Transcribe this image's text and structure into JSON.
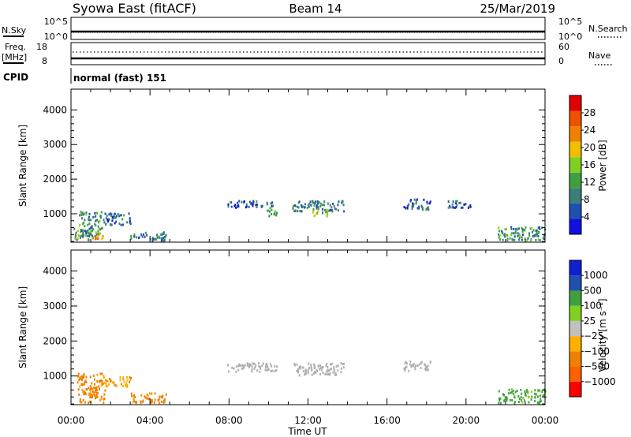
{
  "header": {
    "station": "Syowa East (fitACF)",
    "beam": "Beam 14",
    "date": "25/Mar/2019"
  },
  "top_panels": {
    "nsky_label": "N.Sky",
    "nsky_ticks": [
      "10^5",
      "10^0"
    ],
    "nsearch_label": "N.Search",
    "nsearch_ticks": [
      "10^5",
      "10^0"
    ],
    "freq_label": "Freq.",
    "freq_unit": "[MHz]",
    "freq_ticks": [
      "18",
      "8"
    ],
    "nave_label": "Nave",
    "nave_ticks": [
      "60",
      "0"
    ],
    "cpid_label": "CPID",
    "cpid_value": "normal (fast) 151"
  },
  "colors": {
    "power_scale": [
      "#1010e0",
      "#2050b0",
      "#3a7f78",
      "#40a040",
      "#80d020",
      "#f0c000",
      "#f08000",
      "#f05000",
      "#e00000"
    ],
    "velocity_scale": [
      "#ff0000",
      "#ff6000",
      "#f08000",
      "#ffb000",
      "#c0c0c0",
      "#80d020",
      "#40a040",
      "#2050b0",
      "#1020d0"
    ],
    "ground_scatter": "#b0b0b0"
  },
  "chart_data": [
    {
      "type": "heatmap",
      "name": "power",
      "ylabel": "Slant Range [km]",
      "ylim": [
        180,
        4600
      ],
      "yticks": [
        "4000",
        "3000",
        "2000",
        "1000"
      ],
      "xlim_hours": [
        0,
        24
      ],
      "colorbar_label": "Power [dB]",
      "colorbar_ticks": [
        "28",
        "24",
        "20",
        "16",
        "12",
        "8",
        "4"
      ],
      "colorbar_range": [
        0,
        30
      ],
      "echo_regions": [
        {
          "t": [
            0.1,
            0.9
          ],
          "r": [
            250,
            600
          ],
          "level": 12
        },
        {
          "t": [
            0.4,
            1.6
          ],
          "r": [
            300,
            1100
          ],
          "level": 10
        },
        {
          "t": [
            1.0,
            1.6
          ],
          "r": [
            250,
            450
          ],
          "level": 22
        },
        {
          "t": [
            1.6,
            3.0
          ],
          "r": [
            700,
            1050
          ],
          "level": 6
        },
        {
          "t": [
            3.0,
            4.8
          ],
          "r": [
            250,
            500
          ],
          "level": 8
        },
        {
          "t": [
            7.9,
            10.4
          ],
          "r": [
            1200,
            1400
          ],
          "level": 6
        },
        {
          "t": [
            9.8,
            10.4
          ],
          "r": [
            950,
            1200
          ],
          "level": 12
        },
        {
          "t": [
            11.2,
            13.8
          ],
          "r": [
            1100,
            1400
          ],
          "level": 8
        },
        {
          "t": [
            12.2,
            13.0
          ],
          "r": [
            950,
            1150
          ],
          "level": 14
        },
        {
          "t": [
            16.8,
            18.2
          ],
          "r": [
            1150,
            1450
          ],
          "level": 6
        },
        {
          "t": [
            19.0,
            20.3
          ],
          "r": [
            1200,
            1400
          ],
          "level": 6
        },
        {
          "t": [
            21.6,
            24.0
          ],
          "r": [
            250,
            650
          ],
          "level": 10
        }
      ]
    },
    {
      "type": "heatmap",
      "name": "velocity",
      "ylabel": "Slant Range [km]",
      "ylim": [
        180,
        4600
      ],
      "yticks": [
        "4000",
        "3000",
        "2000",
        "1000"
      ],
      "xlabel": "Time UT",
      "xticks": [
        "00:00",
        "04:00",
        "08:00",
        "12:00",
        "16:00",
        "20:00",
        "00:00"
      ],
      "xlim_hours": [
        0,
        24
      ],
      "colorbar_label": "Velocity [m s⁻¹]",
      "colorbar_ticks": [
        "1000",
        "500",
        "100",
        "25",
        "−25",
        "−100",
        "−500",
        "−1000"
      ],
      "echo_regions": [
        {
          "t": [
            0.3,
            1.7
          ],
          "r": [
            250,
            1100
          ],
          "level": -150
        },
        {
          "t": [
            1.6,
            3.0
          ],
          "r": [
            700,
            1000
          ],
          "level": -80
        },
        {
          "t": [
            3.0,
            4.8
          ],
          "r": [
            250,
            550
          ],
          "level": -200
        },
        {
          "t": [
            7.9,
            10.4
          ],
          "r": [
            1150,
            1400
          ],
          "level": 0
        },
        {
          "t": [
            11.2,
            13.8
          ],
          "r": [
            1050,
            1400
          ],
          "level": 0
        },
        {
          "t": [
            16.8,
            18.2
          ],
          "r": [
            1150,
            1450
          ],
          "level": 0
        },
        {
          "t": [
            21.6,
            24.0
          ],
          "r": [
            250,
            650
          ],
          "level": 150
        }
      ]
    }
  ]
}
